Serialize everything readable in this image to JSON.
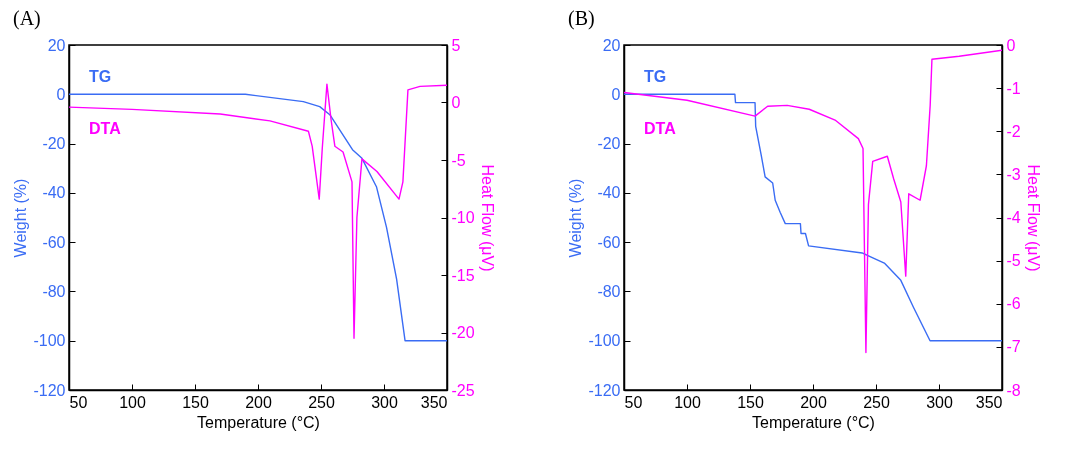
{
  "chart_data": [
    {
      "type": "line",
      "title": "(A)",
      "xlabel": "Temperature (°C)",
      "ylabel": "Weight (%)",
      "y2label": "Heat Flow (μV)",
      "xlim": [
        50,
        350
      ],
      "xticks": [
        50,
        100,
        150,
        200,
        250,
        300,
        350
      ],
      "ylim": [
        -120,
        20
      ],
      "yticks": [
        -120,
        -100,
        -80,
        -60,
        -40,
        -20,
        0,
        20
      ],
      "y2lim": [
        -25,
        5
      ],
      "y2ticks": [
        -25,
        -20,
        -15,
        -10,
        -5,
        0,
        5
      ],
      "line_style": "solid",
      "series": [
        {
          "name": "TG",
          "color": "#3a6cf4",
          "x": [
            50,
            190,
            236,
            249,
            257,
            275,
            282.5,
            294,
            302,
            310,
            316.7,
            350
          ],
          "values": [
            0,
            0,
            -3,
            -5,
            -8.3,
            -22.5,
            -26,
            -37.5,
            -54,
            -75,
            -100,
            -100
          ]
        },
        {
          "name": "DTA",
          "color": "#ff00ff",
          "axis": "y2",
          "x": [
            50,
            100,
            170,
            209.5,
            240,
            243,
            248.6,
            251,
            254.7,
            258,
            261,
            267.5,
            274.6,
            276.2,
            278.5,
            282.5,
            294.4,
            311.9,
            315,
            319,
            328.6,
            350
          ],
          "values": [
            -0.4,
            -0.6,
            -1.0,
            -1.6,
            -2.5,
            -3.8,
            -8.4,
            -4,
            1.6,
            -1.5,
            -3.8,
            -4.3,
            -6.9,
            -20.5,
            -10,
            -4.9,
            -6.0,
            -8.4,
            -6.9,
            1.1,
            1.4,
            1.5
          ]
        }
      ]
    },
    {
      "type": "line",
      "title": "(B)",
      "xlabel": "Temperature (°C)",
      "ylabel": "Weight (%)",
      "y2label": "Heat Flow (μV)",
      "xlim": [
        50,
        350
      ],
      "xticks": [
        50,
        100,
        150,
        200,
        250,
        300,
        350
      ],
      "ylim": [
        -120,
        20
      ],
      "yticks": [
        -120,
        -100,
        -80,
        -60,
        -40,
        -20,
        0,
        20
      ],
      "y2lim": [
        -8,
        0
      ],
      "y2ticks": [
        -8,
        -7,
        -6,
        -5,
        -4,
        -3,
        -2,
        -1,
        0
      ],
      "line_style": "solid",
      "series": [
        {
          "name": "TG",
          "color": "#3a6cf4",
          "x": [
            50,
            138,
            138.5,
            154,
            154.5,
            159,
            162,
            168,
            170,
            174,
            178,
            190,
            190.5,
            194,
            196.5,
            239,
            256.6,
            269.7,
            279.8,
            292.9,
            350
          ],
          "values": [
            0,
            0,
            -3.4,
            -3.4,
            -13,
            -25,
            -33.5,
            -36,
            -43,
            -48,
            -52.5,
            -52.5,
            -56.5,
            -56.5,
            -61.5,
            -64.4,
            -68.5,
            -75.5,
            -86.5,
            -100,
            -100
          ]
        },
        {
          "name": "DTA",
          "color": "#ff00ff",
          "axis": "y2",
          "x": [
            50,
            100,
            154,
            164,
            179.5,
            197,
            218,
            236,
            239.7,
            242,
            244,
            247.4,
            259,
            264,
            269.7,
            273.6,
            276,
            285,
            290,
            293,
            294.4,
            316,
            350
          ],
          "values": [
            -1.1,
            -1.28,
            -1.65,
            -1.42,
            -1.4,
            -1.49,
            -1.75,
            -2.17,
            -2.4,
            -7.13,
            -3.7,
            -2.7,
            -2.58,
            -3.1,
            -3.64,
            -5.36,
            -3.45,
            -3.6,
            -2.8,
            -1.4,
            -0.33,
            -0.26,
            -0.12
          ]
        }
      ]
    }
  ]
}
